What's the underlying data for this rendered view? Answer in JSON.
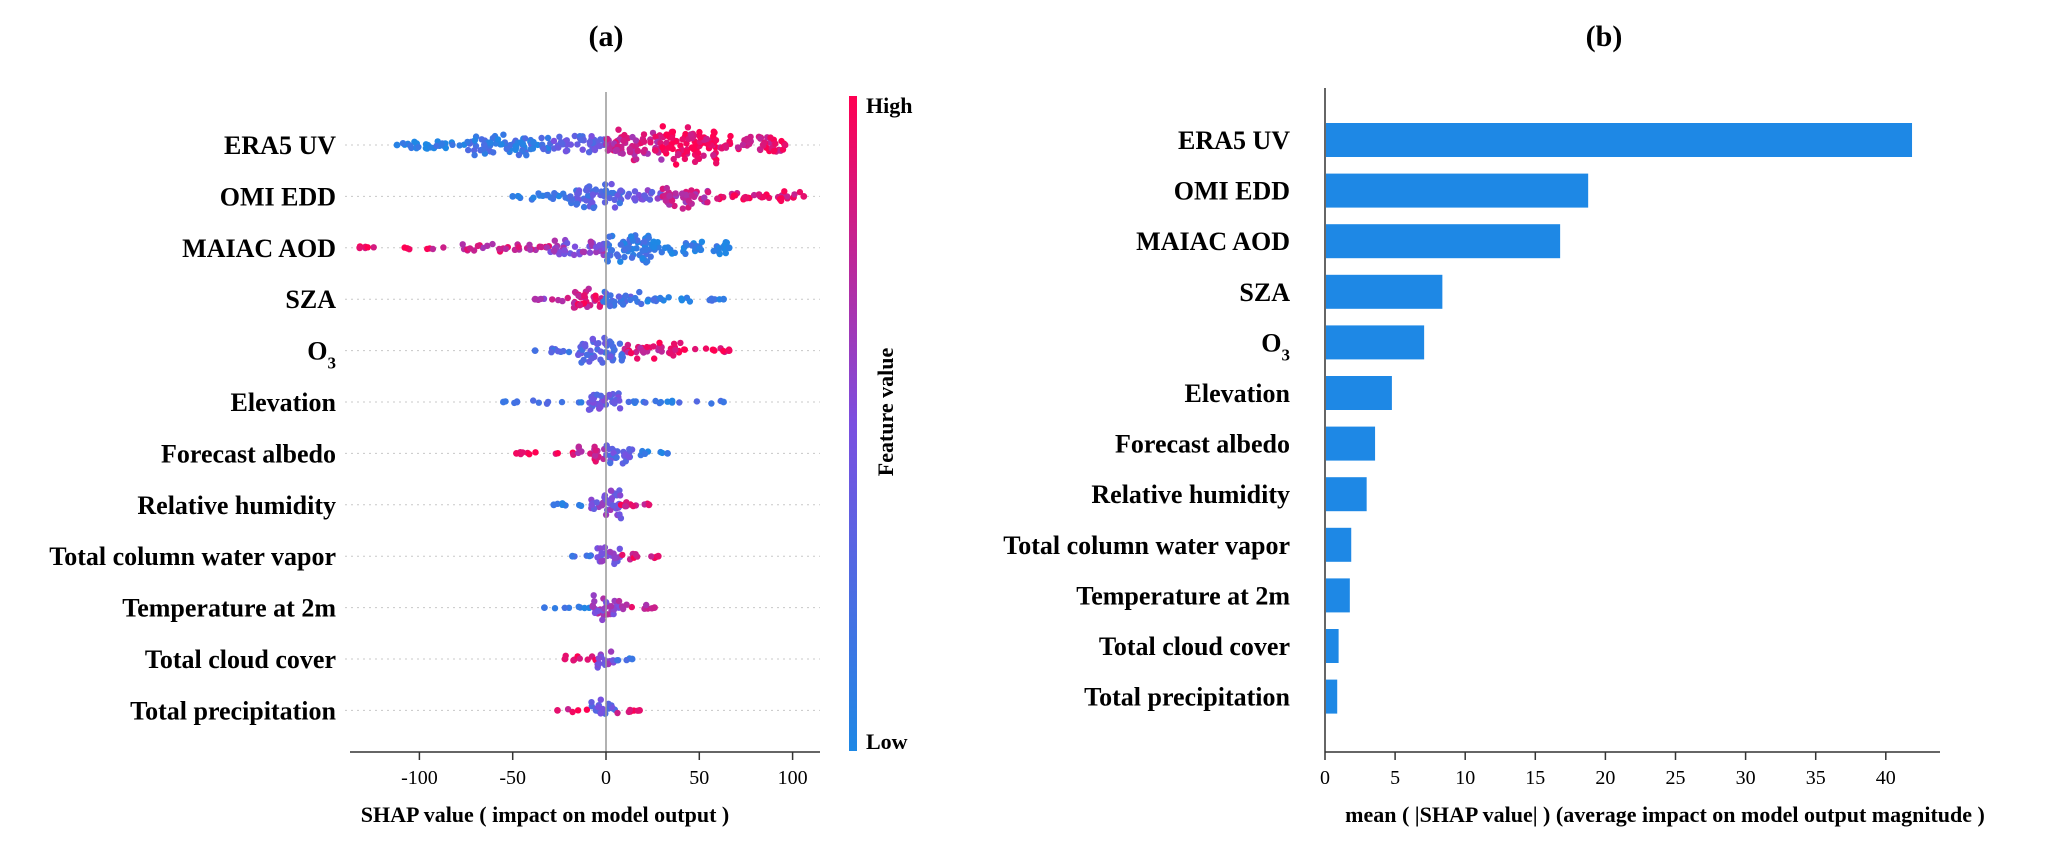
{
  "chart_data": [
    {
      "panel": "(a)",
      "type": "scatter",
      "subtype": "shap-beeswarm",
      "features": [
        "ERA5 UV",
        "OMI EDD",
        "MAIAC AOD",
        "SZA",
        "O",
        "Elevation",
        "Forecast albedo",
        "Relative humidity",
        "Total column water vapor",
        "Temperature at 2m",
        "Total cloud cover",
        "Total precipitation"
      ],
      "subscripts": {
        "O": "3"
      },
      "xlabel": "SHAP value ( impact on model output )",
      "xlim": [
        -145,
        118
      ],
      "xticks": [
        -100,
        -50,
        0,
        50,
        100
      ],
      "colorbar": {
        "label": "Feature value",
        "high": "High",
        "low": "Low"
      },
      "colors": {
        "low": "#1e88e5",
        "high": "#ff0052"
      },
      "distributions": [
        {
          "feature": "ERA5 UV",
          "min": -112,
          "max": 96,
          "segments": [
            [
              -112,
              -75,
              0.25,
              0.05
            ],
            [
              -75,
              -30,
              0.55,
              0.15
            ],
            [
              -30,
              0,
              0.45,
              0.35
            ],
            [
              0,
              30,
              0.75,
              0.8
            ],
            [
              30,
              60,
              1.0,
              0.95
            ],
            [
              60,
              96,
              0.45,
              0.9
            ]
          ]
        },
        {
          "feature": "OMI EDD",
          "min": -50,
          "max": 106,
          "segments": [
            [
              -50,
              -20,
              0.2,
              0.1
            ],
            [
              -20,
              10,
              0.65,
              0.3
            ],
            [
              10,
              30,
              0.35,
              0.45
            ],
            [
              30,
              55,
              0.6,
              0.75
            ],
            [
              55,
              106,
              0.25,
              0.9
            ]
          ]
        },
        {
          "feature": "MAIAC AOD",
          "min": -132,
          "max": 66,
          "segments": [
            [
              -132,
              -80,
              0.08,
              0.9
            ],
            [
              -80,
              -30,
              0.2,
              0.8
            ],
            [
              -30,
              0,
              0.45,
              0.55
            ],
            [
              0,
              25,
              0.85,
              0.15
            ],
            [
              25,
              66,
              0.35,
              0.05
            ]
          ]
        },
        {
          "feature": "SZA",
          "min": -38,
          "max": 63,
          "segments": [
            [
              -38,
              -20,
              0.15,
              0.7
            ],
            [
              -20,
              -2,
              0.55,
              0.85
            ],
            [
              -2,
              20,
              0.4,
              0.25
            ],
            [
              20,
              63,
              0.15,
              0.1
            ]
          ]
        },
        {
          "feature": "O",
          "min": -38,
          "max": 66,
          "segments": [
            [
              -38,
              -15,
              0.12,
              0.2
            ],
            [
              -15,
              10,
              0.7,
              0.3
            ],
            [
              10,
              40,
              0.4,
              0.85
            ],
            [
              40,
              66,
              0.15,
              0.95
            ]
          ]
        },
        {
          "feature": "Elevation",
          "min": -55,
          "max": 63,
          "segments": [
            [
              -55,
              -10,
              0.08,
              0.15
            ],
            [
              -10,
              8,
              0.6,
              0.4
            ],
            [
              8,
              63,
              0.1,
              0.15
            ]
          ]
        },
        {
          "feature": "Forecast albedo",
          "min": -48,
          "max": 33,
          "segments": [
            [
              -48,
              -15,
              0.1,
              0.95
            ],
            [
              -15,
              0,
              0.45,
              0.8
            ],
            [
              0,
              15,
              0.55,
              0.35
            ],
            [
              15,
              33,
              0.12,
              0.15
            ]
          ]
        },
        {
          "feature": "Relative humidity",
          "min": -28,
          "max": 23,
          "segments": [
            [
              -28,
              -8,
              0.12,
              0.15
            ],
            [
              -8,
              8,
              0.8,
              0.5
            ],
            [
              8,
              23,
              0.22,
              0.9
            ]
          ]
        },
        {
          "feature": "Total column water vapor",
          "min": -18,
          "max": 28,
          "segments": [
            [
              -18,
              -5,
              0.1,
              0.15
            ],
            [
              -5,
              8,
              0.55,
              0.5
            ],
            [
              8,
              28,
              0.16,
              0.9
            ]
          ]
        },
        {
          "feature": "Temperature at 2m",
          "min": -33,
          "max": 26,
          "segments": [
            [
              -33,
              -8,
              0.1,
              0.15
            ],
            [
              -8,
              8,
              0.65,
              0.6
            ],
            [
              8,
              26,
              0.15,
              0.8
            ]
          ]
        },
        {
          "feature": "Total cloud cover",
          "min": -22,
          "max": 14,
          "segments": [
            [
              -22,
              -5,
              0.15,
              0.9
            ],
            [
              -5,
              5,
              0.55,
              0.5
            ],
            [
              5,
              14,
              0.15,
              0.15
            ]
          ]
        },
        {
          "feature": "Total precipitation",
          "min": -26,
          "max": 18,
          "segments": [
            [
              -26,
              -8,
              0.06,
              0.9
            ],
            [
              -8,
              5,
              0.5,
              0.35
            ],
            [
              5,
              18,
              0.16,
              0.9
            ]
          ]
        }
      ]
    },
    {
      "panel": "(b)",
      "type": "bar",
      "orientation": "horizontal",
      "categories": [
        "ERA5 UV",
        "OMI EDD",
        "MAIAC AOD",
        "SZA",
        "O",
        "Elevation",
        "Forecast albedo",
        "Relative humidity",
        "Total column water vapor",
        "Temperature at 2m",
        "Total cloud cover",
        "Total precipitation"
      ],
      "subscripts": {
        "O": "3"
      },
      "values": [
        41.8,
        18.7,
        16.7,
        8.3,
        7.0,
        4.7,
        3.5,
        2.9,
        1.8,
        1.7,
        0.9,
        0.8
      ],
      "xlabel": "mean ( |SHAP value| ) (average impact on model output magnitude )",
      "xlim": [
        0,
        44
      ],
      "xticks": [
        0,
        5,
        10,
        15,
        20,
        25,
        30,
        35,
        40
      ],
      "bar_color": "#1e88e5"
    }
  ]
}
